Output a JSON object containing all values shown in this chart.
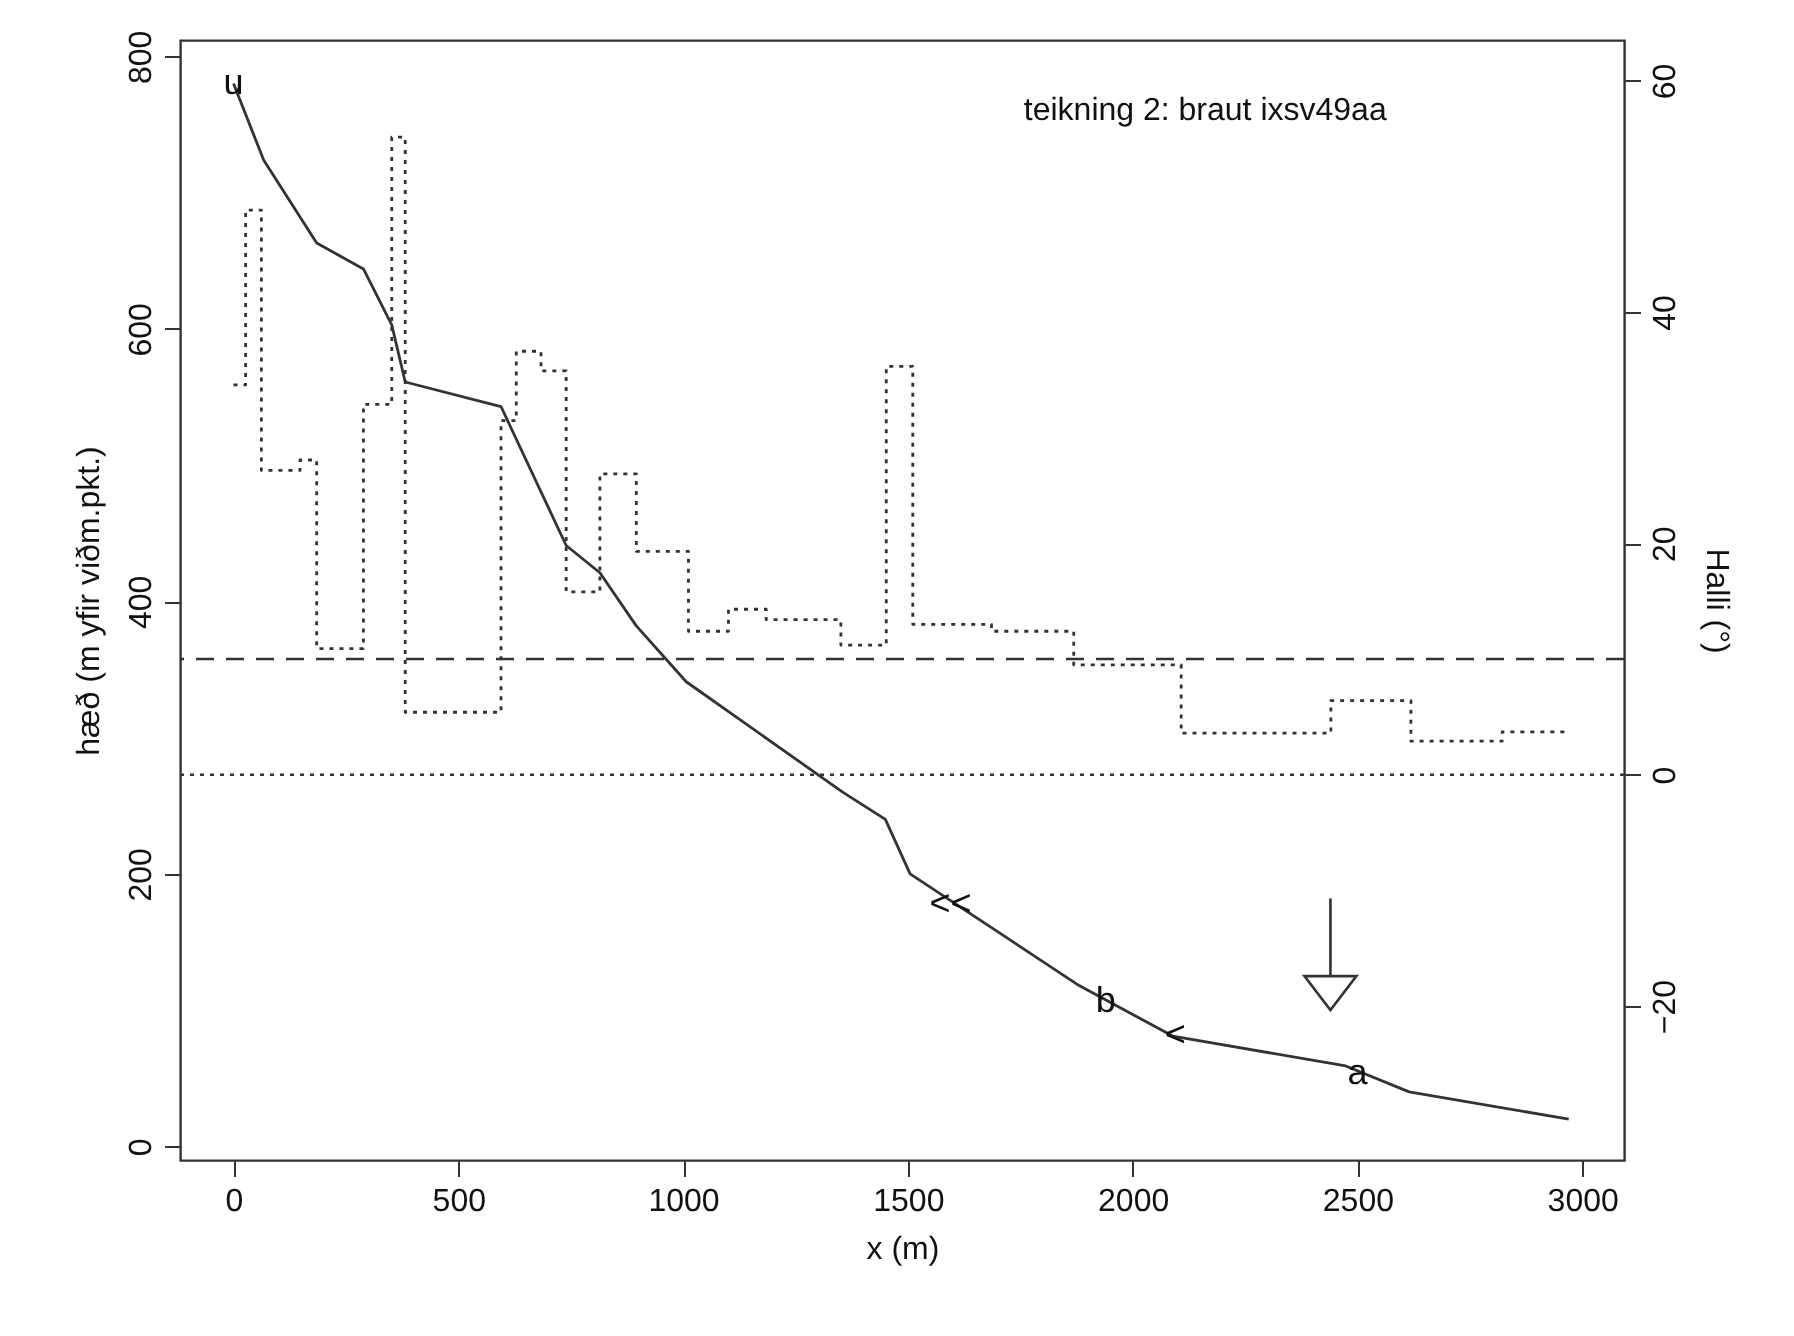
{
  "chart_data": {
    "type": "line",
    "xlabel": "x (m)",
    "ylabel": "hæð (m yfir viðm.pkt.)",
    "y2label": "Halli (°)",
    "xlim": [
      -119,
      3093
    ],
    "xticks": [
      0,
      500,
      1000,
      1500,
      2000,
      2500,
      3000
    ],
    "ylim": [
      -10,
      812
    ],
    "yticks": [
      0,
      200,
      400,
      600,
      800
    ],
    "y2lim": [
      -33.3,
      63.5
    ],
    "y2ticks": [
      -20,
      0,
      20,
      40,
      60
    ],
    "series": [
      {
        "color": "#333333",
        "line_style": "solid",
        "x": [
          0,
          67,
          185,
          289,
          352,
          382,
          595,
          740,
          815,
          896,
          1007,
          1355,
          1450,
          1505,
          1881,
          2089,
          2474,
          2615,
          2970
        ],
        "values": [
          780,
          724,
          663,
          644,
          603,
          561,
          543,
          441,
          421,
          382,
          341,
          260,
          240,
          200,
          118,
          81,
          59,
          40,
          20
        ]
      },
      {
        "type": "step",
        "axis": "y2",
        "color": "#333333",
        "line_style": "dotted",
        "x": [
          0,
          27,
          62,
          148,
          185,
          289,
          352,
          382,
          595,
          629,
          684,
          740,
          815,
          896,
          1012,
          1101,
          1185,
          1351,
          1452,
          1511,
          1686,
          1869,
          2108,
          2441,
          2619,
          2822,
          2962
        ],
        "values": [
          33.7,
          48.8,
          26.3,
          27.2,
          10.9,
          32.0,
          55.1,
          5.4,
          30.6,
          36.6,
          34.9,
          15.8,
          26.0,
          19.3,
          12.4,
          14.3,
          13.4,
          11.2,
          35.3,
          13.0,
          12.4,
          9.5,
          3.6,
          6.4,
          2.9,
          3.7,
          3.7
        ]
      }
    ],
    "ref_lines": [
      {
        "axis": "y2",
        "value": 10,
        "line_style": "dashed",
        "color": "#333333"
      },
      {
        "axis": "y2",
        "value": 0,
        "line_style": "dotted",
        "color": "#333333"
      }
    ],
    "annotations": [
      "teikning 2: braut ixsv49aa",
      {
        "text": "u",
        "x": 0,
        "y": 780
      },
      {
        "text": "<<",
        "x": 1595,
        "y": 177
      },
      {
        "text": "b",
        "x": 1940,
        "y": 106
      },
      {
        "text": "<",
        "x": 2095,
        "y": 81
      },
      {
        "text": "a",
        "x": 2500,
        "y": 53
      }
    ]
  }
}
